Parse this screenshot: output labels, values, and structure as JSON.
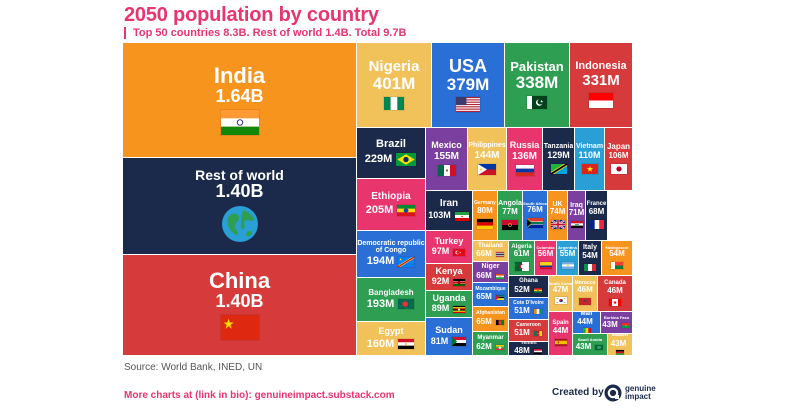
{
  "title": "2050 population by country",
  "subtitle": "Top 50 countries 8.3B. Rest of world 1.4B. Total 9.7B",
  "source": "Source: World Bank, INED, UN",
  "more_charts": "More charts at (link in bio): genuineimpact.substack.com",
  "created_by": "Created by",
  "brand": {
    "line1": "genuine",
    "line2": "impact"
  },
  "chart_data": {
    "type": "treemap",
    "title": "2050 population by country",
    "unit": "population (projected 2050)",
    "items": [
      {
        "name": "India",
        "value": "1.64B",
        "color": "#f7941d",
        "flag": "india"
      },
      {
        "name": "Rest of world",
        "value": "1.40B",
        "color": "#1b2a4a",
        "flag": "globe"
      },
      {
        "name": "China",
        "value": "1.40B",
        "color": "#d63a3a",
        "flag": "china"
      },
      {
        "name": "Nigeria",
        "value": "401M",
        "color": "#f2c25a",
        "flag": "nigeria"
      },
      {
        "name": "USA",
        "value": "379M",
        "color": "#2a6fd6",
        "flag": "usa"
      },
      {
        "name": "Pakistan",
        "value": "338M",
        "color": "#2e9e52",
        "flag": "pakistan"
      },
      {
        "name": "Indonesia",
        "value": "331M",
        "color": "#d63a3a",
        "flag": "indonesia"
      },
      {
        "name": "Brazil",
        "value": "229M",
        "color": "#1b2a4a",
        "flag": "brazil"
      },
      {
        "name": "Ethiopia",
        "value": "205M",
        "color": "#e8356d",
        "flag": "ethiopia"
      },
      {
        "name": "Democratic republic of Congo",
        "value": "194M",
        "color": "#2a6fd6",
        "flag": "drc"
      },
      {
        "name": "Bangladesh",
        "value": "193M",
        "color": "#2e9e52",
        "flag": "bangladesh"
      },
      {
        "name": "Egypt",
        "value": "160M",
        "color": "#f2c25a",
        "flag": "egypt"
      },
      {
        "name": "Mexico",
        "value": "155M",
        "color": "#7b3fa0",
        "flag": "mexico"
      },
      {
        "name": "Philippines",
        "value": "144M",
        "color": "#f2c25a",
        "flag": "philippines"
      },
      {
        "name": "Russia",
        "value": "136M",
        "color": "#e8356d",
        "flag": "russia"
      },
      {
        "name": "Tanzania",
        "value": "129M",
        "color": "#1b2a4a",
        "flag": "tanzania"
      },
      {
        "name": "Vietnam",
        "value": "110M",
        "color": "#2a9fd6",
        "flag": "vietnam"
      },
      {
        "name": "Japan",
        "value": "106M",
        "color": "#d63a3a",
        "flag": "japan"
      },
      {
        "name": "Iran",
        "value": "103M",
        "color": "#1b2a4a",
        "flag": "iran"
      },
      {
        "name": "Turkey",
        "value": "97M",
        "color": "#e8356d",
        "flag": "turkey"
      },
      {
        "name": "Kenya",
        "value": "92M",
        "color": "#d63a3a",
        "flag": "kenya"
      },
      {
        "name": "Uganda",
        "value": "89M",
        "color": "#2e9e52",
        "flag": "uganda"
      },
      {
        "name": "Sudan",
        "value": "81M",
        "color": "#2a6fd6",
        "flag": "sudan"
      },
      {
        "name": "Germany",
        "value": "80M",
        "color": "#f7941d",
        "flag": "germany"
      },
      {
        "name": "Angola",
        "value": "77M",
        "color": "#2e9e52",
        "flag": "angola"
      },
      {
        "name": "South Africa",
        "value": "76M",
        "color": "#2a6fd6",
        "flag": "southafrica"
      },
      {
        "name": "UK",
        "value": "74M",
        "color": "#f7941d",
        "flag": "uk"
      },
      {
        "name": "Iraq",
        "value": "71M",
        "color": "#7b3fa0",
        "flag": "iraq"
      },
      {
        "name": "France",
        "value": "68M",
        "color": "#1b2a4a",
        "flag": "france"
      },
      {
        "name": "Thailand",
        "value": "66M",
        "color": "#f2c25a",
        "flag": "thailand"
      },
      {
        "name": "Niger",
        "value": "66M",
        "color": "#7b3fa0",
        "flag": "niger"
      },
      {
        "name": "Mozambique",
        "value": "65M",
        "color": "#2a6fd6",
        "flag": "mozambique"
      },
      {
        "name": "Afghanistan",
        "value": "65M",
        "color": "#f7941d",
        "flag": "afghanistan"
      },
      {
        "name": "Myanmar",
        "value": "62M",
        "color": "#2e9e52",
        "flag": "myanmar"
      },
      {
        "name": "Algeria",
        "value": "61M",
        "color": "#2e9e52",
        "flag": "algeria"
      },
      {
        "name": "Colombia",
        "value": "56M",
        "color": "#e8356d",
        "flag": "colombia"
      },
      {
        "name": "Argentina",
        "value": "55M",
        "color": "#2a9fd6",
        "flag": "argentina"
      },
      {
        "name": "Italy",
        "value": "54M",
        "color": "#1b2a4a",
        "flag": "italy"
      },
      {
        "name": "Madagascar",
        "value": "54M",
        "color": "#f7941d",
        "flag": "madagascar"
      },
      {
        "name": "Ghana",
        "value": "52M",
        "color": "#1b2a4a",
        "flag": "ghana"
      },
      {
        "name": "Cote D'Ivoire",
        "value": "51M",
        "color": "#2a6fd6",
        "flag": "ivory"
      },
      {
        "name": "Cameroon",
        "value": "51M",
        "color": "#d63a3a",
        "flag": "cameroon"
      },
      {
        "name": "Yemen",
        "value": "48M",
        "color": "#1b2a4a",
        "flag": "yemen"
      },
      {
        "name": "South Korea",
        "value": "47M",
        "color": "#f2c25a",
        "flag": "southkorea"
      },
      {
        "name": "Morocco",
        "value": "46M",
        "color": "#f2c25a",
        "flag": "morocco"
      },
      {
        "name": "Canada",
        "value": "46M",
        "color": "#d63a3a",
        "flag": "canada"
      },
      {
        "name": "Spain",
        "value": "44M",
        "color": "#e8356d",
        "flag": "spain"
      },
      {
        "name": "Mali",
        "value": "44M",
        "color": "#2a6fd6",
        "flag": "mali"
      },
      {
        "name": "Burkina Faso",
        "value": "43M",
        "color": "#7b3fa0",
        "flag": "burkina"
      },
      {
        "name": "Saudi Arabia",
        "value": "43M",
        "color": "#2e9e52",
        "flag": "saudi"
      },
      {
        "name": "Malawi",
        "value": "43M",
        "color": "#f2c25a",
        "flag": "malawi"
      }
    ]
  }
}
